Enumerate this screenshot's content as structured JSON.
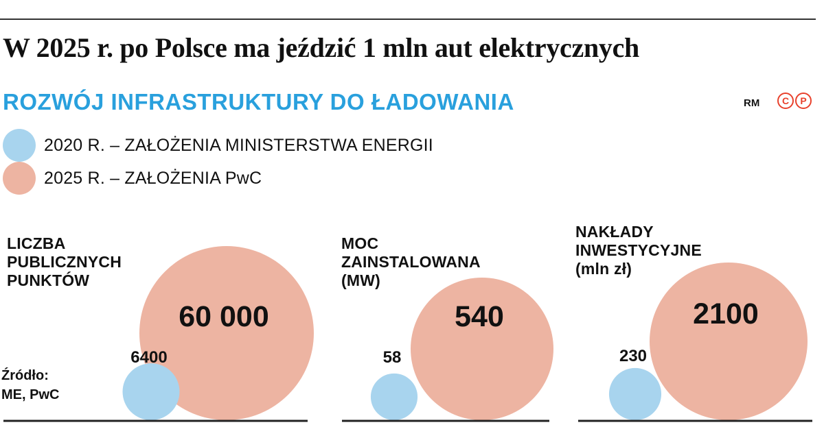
{
  "header": {
    "title": "W 2025 r. po Polsce ma jeździć 1 mln aut elektrycznych",
    "subtitle": "ROZWÓJ INFRASTRUKTURY DO ŁADOWANIA",
    "credit": "RM",
    "badges": [
      "C",
      "P"
    ]
  },
  "colors": {
    "series_2020": "#a8d4ee",
    "series_2025": "#edb4a2",
    "subtitle": "#29a0dd",
    "badge": "#e8412c"
  },
  "legend": [
    {
      "label": "2020 R. – ZAŁOŻENIA MINISTERSTWA ENERGII"
    },
    {
      "label": "2025 R. – ZAŁOŻENIA PwC"
    }
  ],
  "panels": [
    {
      "label_lines": [
        "LICZBA",
        "PUBLICZNYCH",
        "PUNKTÓW"
      ]
    },
    {
      "label_lines": [
        "MOC",
        "ZAINSTALOWANA",
        "(MW)"
      ]
    },
    {
      "label_lines": [
        "NAKŁADY",
        "INWESTYCYJNE",
        "(mln zł)"
      ]
    }
  ],
  "source": {
    "line1": "Źródło:",
    "line2": "ME, PwC"
  },
  "chart_data": {
    "type": "bubble",
    "categories": [
      "LICZBA PUBLICZNYCH PUNKTÓW",
      "MOC ZAINSTALOWANA (MW)",
      "NAKŁADY INWESTYCYJNE (mln zł)"
    ],
    "series": [
      {
        "name": "2020 R. – ZAŁOŻENIA MINISTERSTWA ENERGII",
        "values": [
          6400,
          58,
          230
        ],
        "labels": [
          "6400",
          "58",
          "230"
        ]
      },
      {
        "name": "2025 R. – ZAŁOŻENIA PwC",
        "values": [
          60000,
          540,
          2100
        ],
        "labels": [
          "60 000",
          "540",
          "2100"
        ]
      }
    ]
  }
}
